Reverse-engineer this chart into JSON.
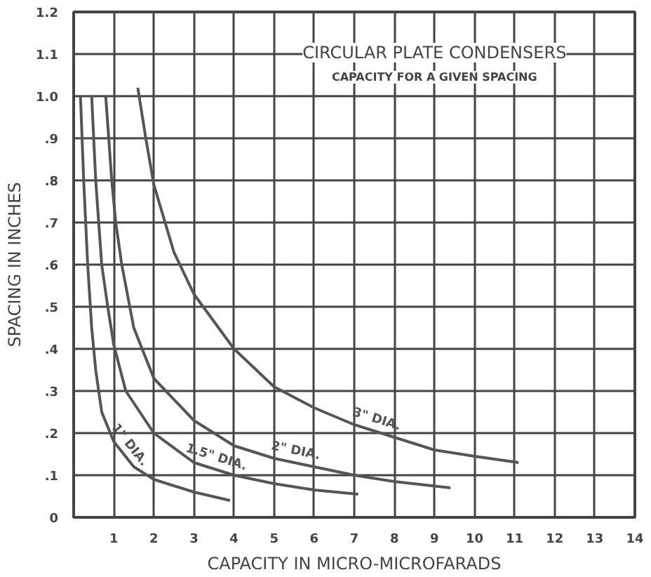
{
  "chart_data": {
    "type": "line",
    "title": "CIRCULAR PLATE CONDENSERS",
    "subtitle": "CAPACITY FOR A GIVEN SPACING",
    "xlabel": "CAPACITY IN MICRO-MICROFARADS",
    "ylabel": "SPACING IN INCHES",
    "xlim": [
      0,
      14
    ],
    "ylim": [
      0,
      1.2
    ],
    "xticks": [
      {
        "value": 0,
        "label": null
      },
      1,
      2,
      3,
      4,
      5,
      6,
      7,
      8,
      9,
      10,
      11,
      12,
      13,
      14
    ],
    "yticks": [
      0,
      {
        "value": 0.1,
        "label": ".1"
      },
      {
        "value": 0.2,
        "label": ".2"
      },
      {
        "value": 0.3,
        "label": ".3"
      },
      {
        "value": 0.4,
        "label": ".4"
      },
      {
        "value": 0.5,
        "label": ".5"
      },
      {
        "value": 0.6,
        "label": ".6"
      },
      {
        "value": 0.7,
        "label": ".7"
      },
      {
        "value": 0.8,
        "label": ".8"
      },
      {
        "value": 0.9,
        "label": ".9"
      },
      {
        "value": 1.0,
        "label": "1.0"
      },
      {
        "value": 1.1,
        "label": "1.1"
      },
      {
        "value": 1.2,
        "label": "1.2"
      }
    ],
    "grid": true,
    "marker": "none",
    "line_style": "solid",
    "series": [
      {
        "name": "1\" DIA.",
        "color": "#555555",
        "x": [
          0.17,
          0.25,
          0.35,
          0.45,
          0.55,
          0.7,
          1.0,
          1.5,
          2,
          3,
          3.9
        ],
        "values": [
          1.0,
          0.8,
          0.6,
          0.45,
          0.35,
          0.25,
          0.18,
          0.12,
          0.09,
          0.06,
          0.04
        ]
      },
      {
        "name": "1.5\" DIA.",
        "color": "#555555",
        "x": [
          0.45,
          0.55,
          0.7,
          0.85,
          1.0,
          1.3,
          2,
          3,
          4,
          5,
          6,
          7.1
        ],
        "values": [
          1.0,
          0.8,
          0.6,
          0.5,
          0.41,
          0.3,
          0.2,
          0.13,
          0.1,
          0.08,
          0.065,
          0.055
        ]
      },
      {
        "name": "2\" DIA.",
        "color": "#555555",
        "x": [
          0.8,
          0.95,
          1.05,
          1.2,
          1.5,
          2,
          3,
          4,
          5,
          6,
          7,
          8,
          9.4
        ],
        "values": [
          1.0,
          0.8,
          0.7,
          0.6,
          0.45,
          0.33,
          0.23,
          0.17,
          0.14,
          0.12,
          0.1,
          0.085,
          0.07
        ]
      },
      {
        "name": "3\" DIA.",
        "color": "#555555",
        "x": [
          1.6,
          1.8,
          2,
          2.5,
          3,
          4,
          5,
          6,
          7,
          8,
          9,
          10,
          11.1
        ],
        "values": [
          1.02,
          0.9,
          0.79,
          0.63,
          0.53,
          0.4,
          0.31,
          0.26,
          0.22,
          0.19,
          0.16,
          0.145,
          0.13
        ]
      }
    ]
  }
}
